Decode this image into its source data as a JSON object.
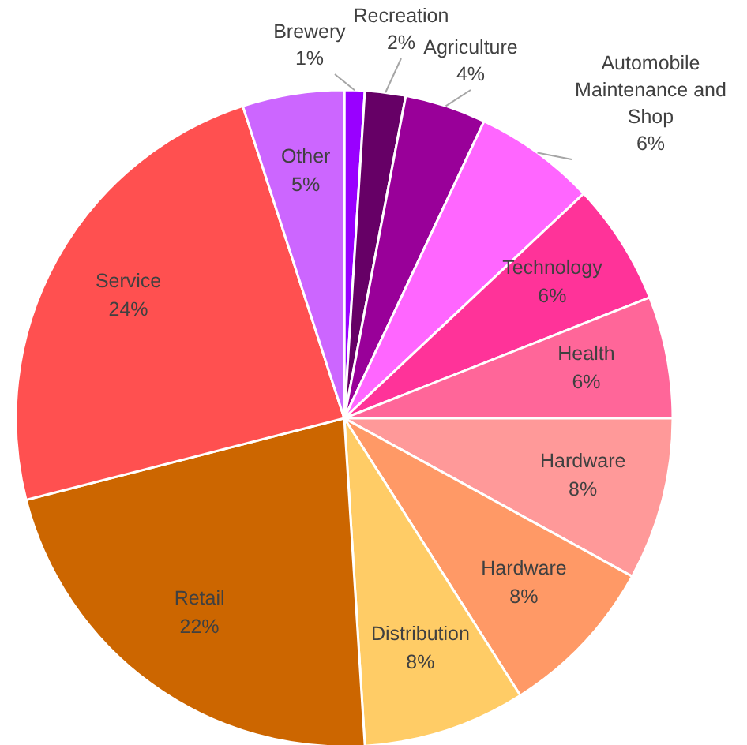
{
  "chart_data": {
    "type": "pie",
    "categories": [
      "Brewery",
      "Recreation",
      "Agriculture",
      "Automobile Maintenance and Shop",
      "Technology",
      "Health",
      "Hardware",
      "Hardware",
      "Distribution",
      "Retail",
      "Service",
      "Other"
    ],
    "values": [
      1,
      2,
      4,
      6,
      6,
      6,
      8,
      8,
      8,
      22,
      24,
      5
    ],
    "colors": [
      "#9900ff",
      "#660066",
      "#990099",
      "#ff66ff",
      "#ff3399",
      "#ff6699",
      "#ff9999",
      "#ff9966",
      "#ffcc66",
      "#cc6600",
      "#ff5050",
      "#cc66ff"
    ],
    "value_labels": [
      "1%",
      "2%",
      "4%",
      "6%",
      "6%",
      "6%",
      "8%",
      "8%",
      "8%",
      "22%",
      "24%",
      "5%"
    ],
    "legend": false
  }
}
